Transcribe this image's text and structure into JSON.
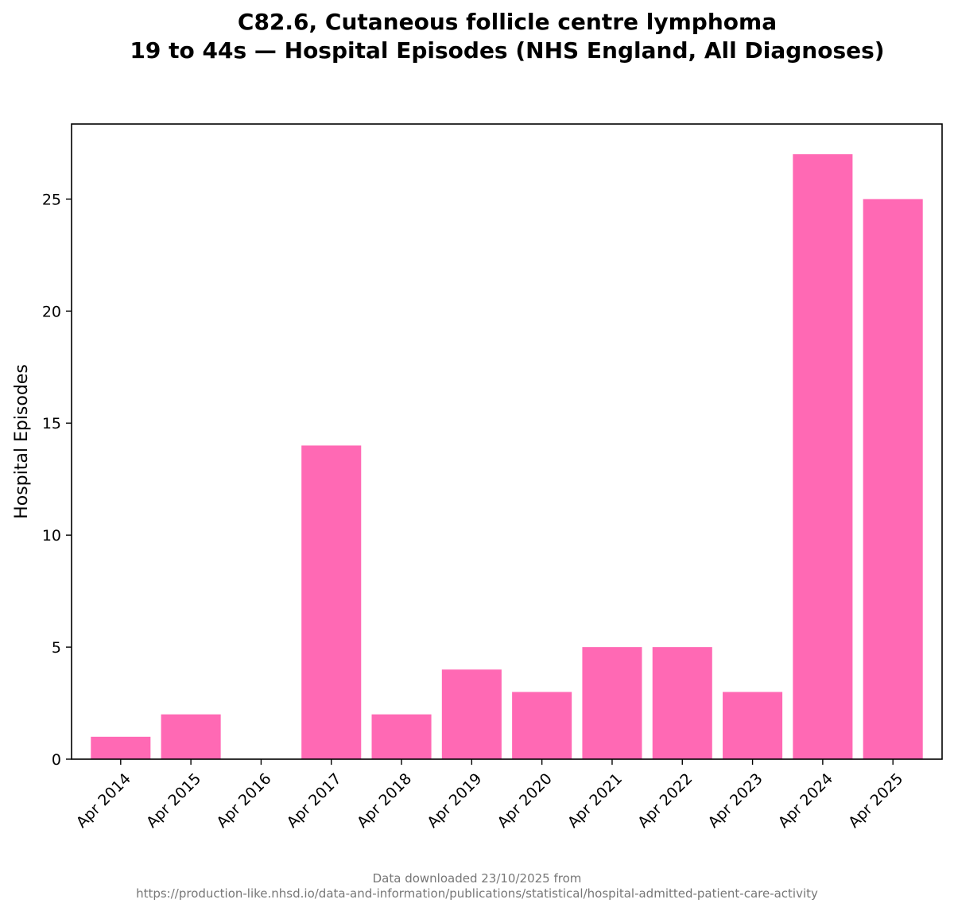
{
  "chart_data": {
    "type": "bar",
    "title": [
      "C82.6, Cutaneous follicle centre lymphoma",
      "19 to 44s — Hospital Episodes (NHS England, All Diagnoses)"
    ],
    "xlabel": "",
    "ylabel": "Hospital Episodes",
    "categories": [
      "Apr 2014",
      "Apr 2015",
      "Apr 2016",
      "Apr 2017",
      "Apr 2018",
      "Apr 2019",
      "Apr 2020",
      "Apr 2021",
      "Apr 2022",
      "Apr 2023",
      "Apr 2024",
      "Apr 2025"
    ],
    "values": [
      1,
      2,
      0,
      14,
      2,
      4,
      3,
      5,
      5,
      3,
      27,
      25
    ],
    "ylim": [
      0,
      28.35
    ],
    "yticks": [
      0,
      5,
      10,
      15,
      20,
      25
    ],
    "bar_color": "#ff69b4",
    "grid": false,
    "legend": "none"
  },
  "footer": {
    "line1": "Data downloaded 23/10/2025 from",
    "line2": "https://production-like.nhsd.io/data-and-information/publications/statistical/hospital-admitted-patient-care-activity"
  }
}
